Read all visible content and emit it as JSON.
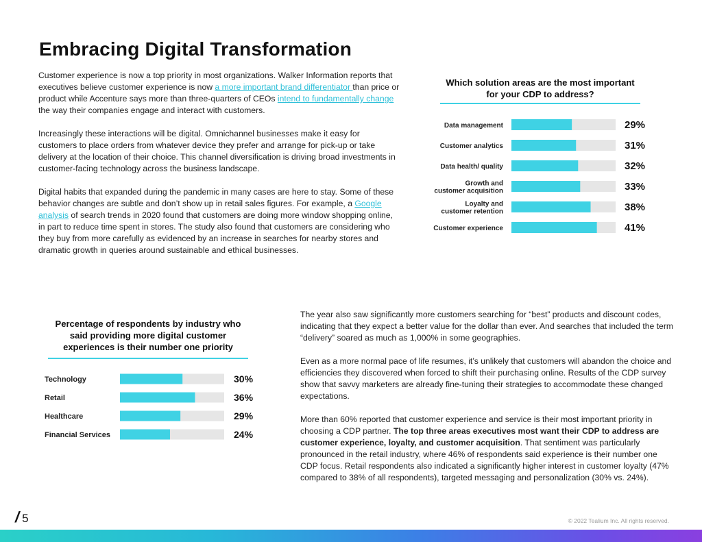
{
  "title": "Embracing Digital Transformation",
  "intro": {
    "p1": {
      "t1": "Customer experience is now a top priority in most organizations. Walker Information reports that executives believe customer experience is now ",
      "link1": "a more important brand differentiator ",
      "t2": "than price or product while Accenture says more than three-quarters of CEOs ",
      "link2": "intend to fundamentally change",
      "t3": " the way their companies engage and interact with customers."
    },
    "p2": "Increasingly these interactions will be digital. Omnichannel businesses make it easy for customers to place orders from whatever device they prefer and arrange for pick-up or take delivery at the location of their choice. This channel diversification is driving broad investments in customer-facing technology across the business landscape.",
    "p3": {
      "t1": "Digital habits that expanded during the pandemic in many cases are here to stay. Some of these behavior changes are subtle and don’t show up in retail sales figures. For example, a ",
      "link": "Google analysis",
      "t2": " of search trends in 2020 found that customers are doing more window shopping online, in part to reduce time spent in stores. The study also found that customers are considering who they buy from more carefully as evidenced by an increase in searches for nearby stores and dramatic growth in queries around sustainable and ethical businesses."
    }
  },
  "right_col": {
    "p1": "The year also saw significantly more customers searching for “best” products and discount codes, indicating that they expect a better value for the dollar than ever. And searches that included the term “delivery” soared as much as 1,000% in some geographies.",
    "p2": "Even as a more normal pace of life resumes, it’s unlikely that customers will abandon the choice and efficiencies they discovered when forced to shift their purchasing online. Results of the CDP survey show that savvy marketers are already fine-tuning their strategies to accommodate these changed expectations.",
    "p3": {
      "t1": "More than 60% reported that customer experience and service is their most important priority in choosing a CDP partner. ",
      "bold": "The top three areas executives most want their CDP to address are customer experience, loyalty, and customer acquisition",
      "t2": ". That sentiment was particularly pronounced in the retail industry, where 46% of respondents said experience is their number one CDP focus. Retail respondents also indicated a significantly higher interest in customer loyalty (47% compared to 38% of all respondents), targeted messaging and personalization (30% vs. 24%)."
    }
  },
  "colors": {
    "bar": "#3fd2e4",
    "track": "#e6e6e6",
    "accent": "#2bbfd8"
  },
  "chart_data": [
    {
      "type": "bar",
      "orientation": "horizontal",
      "title": "Which solution areas are the most important for your CDP to address?",
      "categories": [
        "Data management",
        "Customer analytics",
        "Data health/ quality",
        "Growth and\ncustomer acquisition",
        "Loyalty and\ncustomer retention",
        "Customer experience"
      ],
      "values": [
        29,
        31,
        32,
        33,
        38,
        41
      ],
      "value_labels": [
        "29%",
        "31%",
        "32%",
        "33%",
        "38%",
        "41%"
      ],
      "xlim": [
        0,
        50
      ],
      "xlabel": "",
      "ylabel": ""
    },
    {
      "type": "bar",
      "orientation": "horizontal",
      "title": "Percentage of respondents by industry who said providing more digital customer experiences is their number one priority",
      "categories": [
        "Technology",
        "Retail",
        "Healthcare",
        "Financial Services"
      ],
      "values": [
        30,
        36,
        29,
        24
      ],
      "value_labels": [
        "30%",
        "36%",
        "29%",
        "24%"
      ],
      "xlim": [
        0,
        50
      ],
      "xlabel": "",
      "ylabel": ""
    }
  ],
  "footer": {
    "page_number": "5",
    "slash": "/",
    "copyright": "© 2022 Tealium Inc. All rights reserved."
  }
}
